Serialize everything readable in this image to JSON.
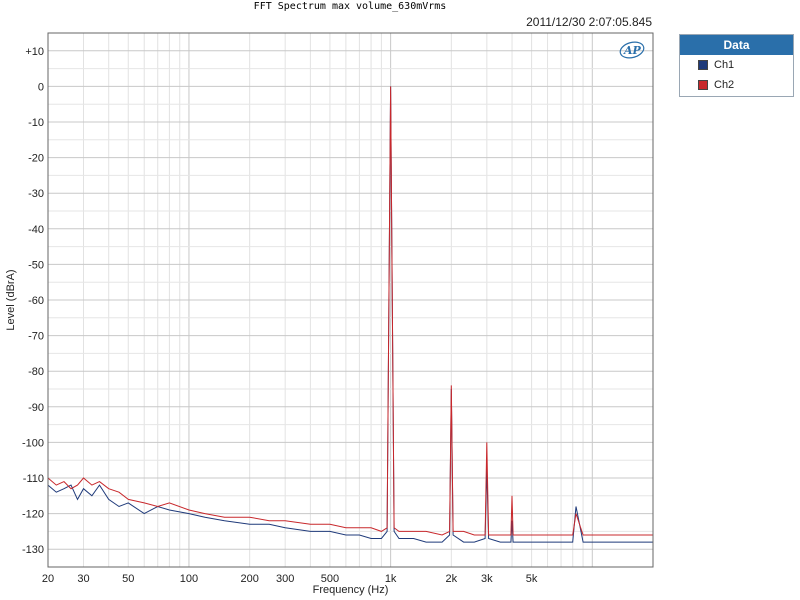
{
  "chart_data": {
    "type": "line",
    "title": "FFT Spectrum max volume_630mVrms",
    "timestamp": "2011/12/30 2:07:05.845",
    "xlabel": "Frequency (Hz)",
    "ylabel": "Level (dBrA)",
    "xscale": "log",
    "xlim": [
      20,
      20000
    ],
    "ylim": [
      -135,
      15
    ],
    "x_ticks": [
      {
        "value": 20,
        "label": "20"
      },
      {
        "value": 30,
        "label": "30"
      },
      {
        "value": 50,
        "label": "50"
      },
      {
        "value": 100,
        "label": "100"
      },
      {
        "value": 200,
        "label": "200"
      },
      {
        "value": 300,
        "label": "300"
      },
      {
        "value": 500,
        "label": "500"
      },
      {
        "value": 1000,
        "label": "1k"
      },
      {
        "value": 2000,
        "label": "2k"
      },
      {
        "value": 3000,
        "label": "3k"
      },
      {
        "value": 5000,
        "label": "5k"
      }
    ],
    "y_ticks": [
      {
        "value": 10,
        "label": "+10"
      },
      {
        "value": 0,
        "label": "0"
      },
      {
        "value": -10,
        "label": "-10"
      },
      {
        "value": -20,
        "label": "-20"
      },
      {
        "value": -30,
        "label": "-30"
      },
      {
        "value": -40,
        "label": "-40"
      },
      {
        "value": -50,
        "label": "-50"
      },
      {
        "value": -60,
        "label": "-60"
      },
      {
        "value": -70,
        "label": "-70"
      },
      {
        "value": -80,
        "label": "-80"
      },
      {
        "value": -90,
        "label": "-90"
      },
      {
        "value": -100,
        "label": "-100"
      },
      {
        "value": -110,
        "label": "-110"
      },
      {
        "value": -120,
        "label": "-120"
      },
      {
        "value": -130,
        "label": "-130"
      }
    ],
    "grid": true,
    "legend": {
      "title": "Data",
      "placement": "right-outside-top"
    },
    "series": [
      {
        "name": "Ch1",
        "color": "#1f3a7a",
        "x": [
          20,
          22,
          24,
          26,
          28,
          30,
          33,
          36,
          40,
          45,
          50,
          60,
          70,
          80,
          100,
          120,
          150,
          200,
          250,
          300,
          400,
          500,
          600,
          700,
          800,
          900,
          960,
          1000,
          1040,
          1100,
          1300,
          1500,
          1800,
          1960,
          2000,
          2040,
          2300,
          2600,
          2940,
          3000,
          3060,
          3500,
          3950,
          4000,
          4050,
          5000,
          6000,
          7000,
          8000,
          8300,
          9000,
          10000,
          11000,
          12000,
          13000,
          15000,
          17000,
          18500,
          20000
        ],
        "y": [
          -112,
          -114,
          -113,
          -112,
          -116,
          -113,
          -115,
          -112,
          -116,
          -118,
          -117,
          -120,
          -118,
          -119,
          -120,
          -121,
          -122,
          -123,
          -123,
          -124,
          -125,
          -125,
          -126,
          -126,
          -127,
          -127,
          -125,
          0,
          -125,
          -127,
          -127,
          -128,
          -128,
          -126,
          -85,
          -126,
          -128,
          -128,
          -127,
          -107,
          -127,
          -128,
          -128,
          -122,
          -128,
          -128,
          -128,
          -128,
          -128,
          -118,
          -128,
          -128,
          -128,
          -128,
          -128,
          -128,
          -128,
          -128,
          -128
        ]
      },
      {
        "name": "Ch2",
        "color": "#c8282c",
        "x": [
          20,
          22,
          24,
          26,
          28,
          30,
          33,
          36,
          40,
          45,
          50,
          60,
          70,
          80,
          100,
          120,
          150,
          200,
          250,
          300,
          400,
          500,
          600,
          700,
          800,
          900,
          960,
          1000,
          1040,
          1100,
          1300,
          1500,
          1800,
          1960,
          2000,
          2040,
          2300,
          2600,
          2940,
          3000,
          3060,
          3500,
          3950,
          4000,
          4050,
          5000,
          6000,
          7000,
          8000,
          8300,
          9000,
          10000,
          11000,
          12000,
          13000,
          15000,
          17000,
          18500,
          20000
        ],
        "y": [
          -110,
          -112,
          -111,
          -113,
          -112,
          -110,
          -112,
          -111,
          -113,
          -114,
          -116,
          -117,
          -118,
          -117,
          -119,
          -120,
          -121,
          -121,
          -122,
          -122,
          -123,
          -123,
          -124,
          -124,
          -124,
          -125,
          -124,
          0,
          -124,
          -125,
          -125,
          -125,
          -126,
          -125,
          -84,
          -125,
          -125,
          -126,
          -126,
          -100,
          -126,
          -126,
          -126,
          -115,
          -126,
          -126,
          -126,
          -126,
          -126,
          -120,
          -126,
          -126,
          -126,
          -126,
          -126,
          -126,
          -126,
          -126,
          -126
        ]
      }
    ]
  }
}
